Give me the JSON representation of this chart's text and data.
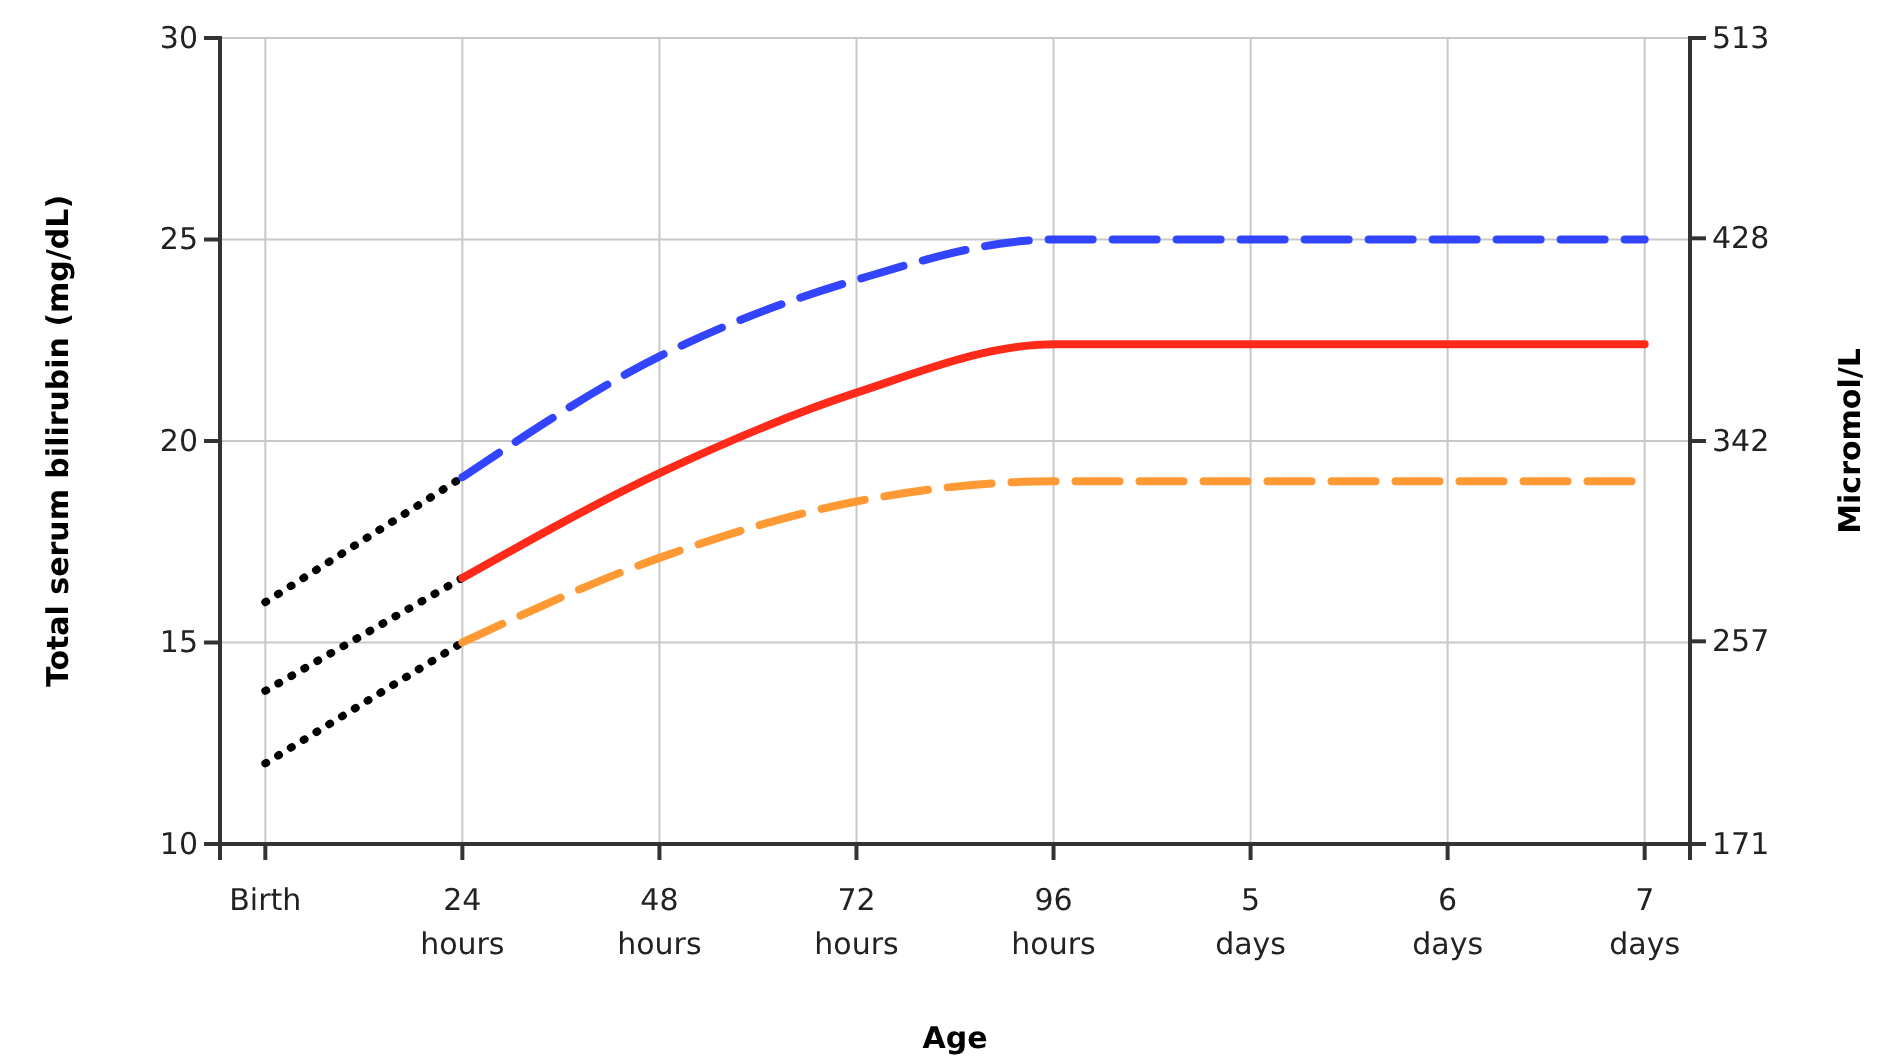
{
  "chart_data": {
    "type": "line",
    "xlabel": "Age",
    "ylabel": "Total serum bilirubin (mg/dL)",
    "y2label": "Micromol/L",
    "categories": [
      "Birth",
      "24 hours",
      "48 hours",
      "72 hours",
      "96 hours",
      "5 days",
      "6 days",
      "7 days"
    ],
    "ylim": [
      10,
      30
    ],
    "yticks": [
      10,
      15,
      20,
      25,
      30
    ],
    "y2lim": [
      171,
      513
    ],
    "y2ticks": [
      171,
      257,
      342,
      428,
      513
    ],
    "grid": true,
    "marker": "none",
    "series": [
      {
        "color": "#000000",
        "line_style": "dotted",
        "values": [
          16.0,
          19.1,
          null,
          null,
          null,
          null,
          null,
          null
        ]
      },
      {
        "color": "#000000",
        "line_style": "dotted",
        "values": [
          13.8,
          16.6,
          null,
          null,
          null,
          null,
          null,
          null
        ]
      },
      {
        "color": "#000000",
        "line_style": "dotted",
        "values": [
          12.0,
          15.0,
          null,
          null,
          null,
          null,
          null,
          null
        ]
      },
      {
        "color": "#3344ff",
        "line_style": "dashed",
        "values": [
          null,
          19.1,
          22.1,
          24.0,
          25,
          25,
          25,
          25
        ]
      },
      {
        "color": "#ff2a1a",
        "line_style": "solid",
        "values": [
          null,
          16.6,
          19.2,
          21.2,
          22.4,
          22.4,
          22.4,
          22.4
        ]
      },
      {
        "color": "#ff9933",
        "line_style": "dashed",
        "values": [
          null,
          15.0,
          17.1,
          18.5,
          19.0,
          19.0,
          19.0,
          19.0
        ]
      }
    ]
  }
}
